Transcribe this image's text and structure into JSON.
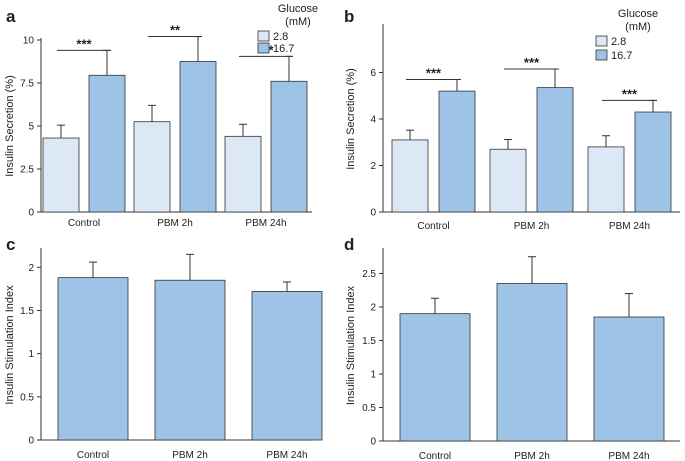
{
  "colors": {
    "light": "#dce8f5",
    "dark": "#9dc3e6",
    "edge": "#333333",
    "axis": "#333333"
  },
  "chart_data": [
    {
      "panel": "a",
      "type": "bar",
      "ylabel": "Insulin Secretion (%)",
      "ylim": [
        0,
        10
      ],
      "yticks": [
        "0",
        "2.5",
        "5",
        "7.5",
        "10"
      ],
      "yticks_values": [
        0,
        2.5,
        5,
        7.5,
        10
      ],
      "categories": [
        "Control",
        "PBM 2h",
        "PBM 24h"
      ],
      "legend": {
        "title_line1": "Glucose",
        "title_line2": "(mM)",
        "entries": [
          "2.8",
          "16.7"
        ]
      },
      "series": [
        {
          "name": "2.8",
          "values": [
            4.3,
            5.25,
            4.4
          ],
          "errors": [
            0.75,
            0.95,
            0.7
          ]
        },
        {
          "name": "16.7",
          "values": [
            7.95,
            8.75,
            7.6
          ],
          "errors": [
            1.45,
            1.45,
            1.45
          ]
        }
      ],
      "significance": [
        "***",
        "**",
        "***"
      ]
    },
    {
      "panel": "b",
      "type": "bar",
      "ylabel": "Insulin Secretion (%)",
      "ylim": [
        0,
        8
      ],
      "yticks": [
        "0",
        "2",
        "4",
        "6"
      ],
      "yticks_values": [
        0,
        2,
        4,
        6
      ],
      "categories": [
        "Control",
        "PBM 2h",
        "PBM 24h"
      ],
      "legend": {
        "title_line1": "Glucose",
        "title_line2": "(mM)",
        "entries": [
          "2.8",
          "16.7"
        ]
      },
      "series": [
        {
          "name": "2.8",
          "values": [
            3.1,
            2.7,
            2.8
          ],
          "errors": [
            0.42,
            0.42,
            0.48
          ]
        },
        {
          "name": "16.7",
          "values": [
            5.2,
            5.35,
            4.3
          ],
          "errors": [
            0.5,
            0.8,
            0.5
          ]
        }
      ],
      "significance": [
        "***",
        "***",
        "***"
      ]
    },
    {
      "panel": "c",
      "type": "bar",
      "ylabel": "Insulin Stimulation Index",
      "ylim": [
        0,
        2.2
      ],
      "yticks": [
        "0",
        "0.5",
        "1",
        "1.5",
        "2"
      ],
      "yticks_values": [
        0,
        0.5,
        1,
        1.5,
        2
      ],
      "categories": [
        "Control",
        "PBM 2h",
        "PBM 24h"
      ],
      "series": [
        {
          "name": "index",
          "values": [
            1.88,
            1.85,
            1.72
          ],
          "errors": [
            0.18,
            0.3,
            0.11
          ]
        }
      ]
    },
    {
      "panel": "d",
      "type": "bar",
      "ylabel": "Insulin Stimulation Index",
      "ylim": [
        0,
        2.85
      ],
      "yticks": [
        "0",
        "0.5",
        "1",
        "1.5",
        "2",
        "2.5"
      ],
      "yticks_values": [
        0,
        0.5,
        1,
        1.5,
        2,
        2.5
      ],
      "categories": [
        "Control",
        "PBM 2h",
        "PBM 24h"
      ],
      "series": [
        {
          "name": "index",
          "values": [
            1.9,
            2.35,
            1.85
          ],
          "errors": [
            0.23,
            0.4,
            0.35
          ]
        }
      ]
    }
  ]
}
